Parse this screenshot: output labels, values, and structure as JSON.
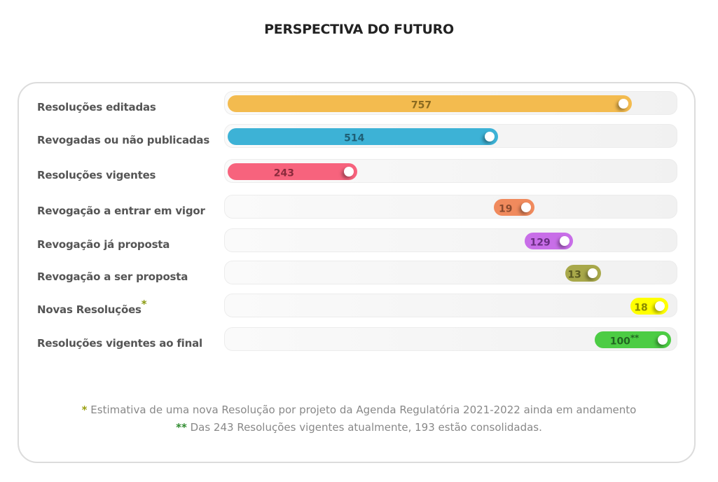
{
  "chart_data": {
    "type": "bar",
    "title": "PERSPECTIVA DO FUTURO",
    "categories": [
      "Resoluções editadas",
      "Revogadas ou não publicadas",
      "Resoluções vigentes",
      "Revogação a entrar em vigor",
      "Revogação já proposta",
      "Revogação a ser proposta",
      "Novas Resoluções",
      "Resoluções vigentes ao final"
    ],
    "category_marks": [
      "",
      "",
      "",
      "",
      "",
      "",
      "*",
      ""
    ],
    "values": [
      757,
      514,
      243,
      19,
      129,
      13,
      18,
      100
    ],
    "value_labels": [
      "757",
      "514",
      "243",
      "19",
      "129",
      "13",
      "18",
      "100"
    ],
    "value_marks": [
      "",
      "",
      "",
      "",
      "",
      "",
      "",
      "**"
    ],
    "colors": [
      "#f3bb4f",
      "#3db2d6",
      "#f7637d",
      "#f08a5d",
      "#c86ee8",
      "#a8a84a",
      "#ffff00",
      "#4ccc44"
    ],
    "text_colors": [
      "#8a6a20",
      "#1f5f75",
      "#8a2a3c",
      "#8a4a2e",
      "#6a2e82",
      "#5a5a22",
      "#8a8a00",
      "#226622"
    ]
  },
  "footnotes": [
    {
      "mark": "*",
      "text": "Estimativa de uma nova Resolução por projeto da Agenda Regulatória 2021-2022 ainda em andamento"
    },
    {
      "mark": "**",
      "text": "Das 243 Resoluções vigentes atualmente, 193 estão consolidadas."
    }
  ]
}
